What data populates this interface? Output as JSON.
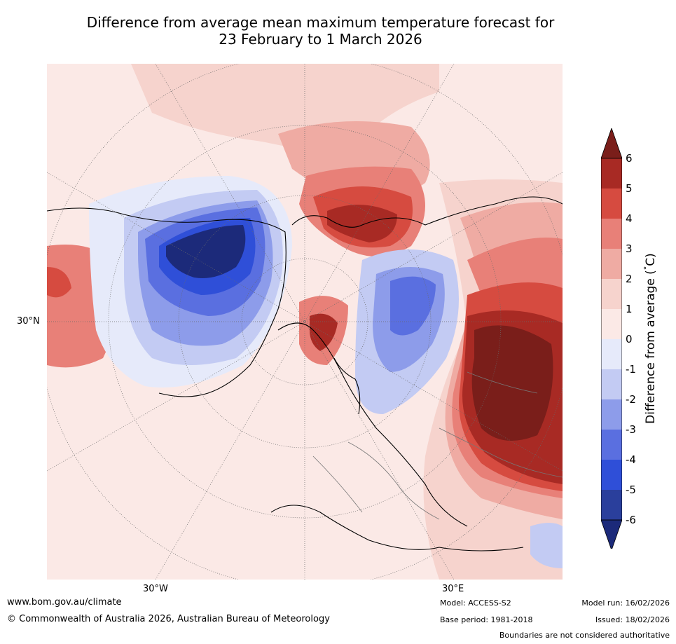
{
  "title": {
    "line1": "Difference from average mean maximum temperature forecast for",
    "line2": "23 February to 1 March 2026"
  },
  "map": {
    "labels": {
      "lat30n": "30°N",
      "lon30w": "30°W",
      "lon30e": "30°E"
    }
  },
  "colorbar": {
    "title": "Difference from average (°C)",
    "ticks": [
      "6",
      "5",
      "4",
      "3",
      "2",
      "1",
      "0",
      "-1",
      "-2",
      "-3",
      "-4",
      "-5",
      "-6"
    ],
    "colors": [
      "#7a1e1a",
      "#a82a24",
      "#d64b40",
      "#e88078",
      "#efaba3",
      "#f6d3cd",
      "#fbe9e6",
      "#e6eafa",
      "#c3cbf3",
      "#8d9cea",
      "#5a6fe0",
      "#2f4fd8",
      "#2a3f9c",
      "#1c2a7a"
    ],
    "title_parts": [
      "Difference from average (",
      "°",
      "C)"
    ]
  },
  "footer": {
    "website": "www.bom.gov.au/climate",
    "copyright": "© Commonwealth of Australia 2026, Australian Bureau of Meteorology",
    "model": "Model: ACCESS-S2",
    "base_period": "Base period: 1981-2018",
    "model_run": "Model run: 16/02/2026",
    "issued": "Issued: 18/02/2026",
    "disclaimer": "Boundaries are not considered authoritative"
  }
}
